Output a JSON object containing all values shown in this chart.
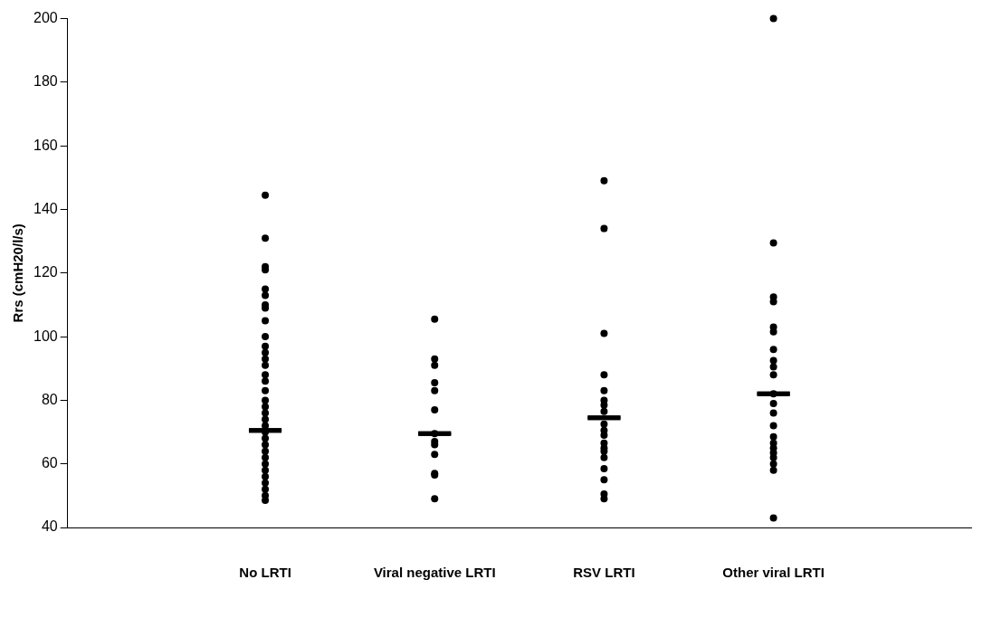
{
  "chart_data": {
    "type": "scatter",
    "ylabel": "Rrs (cmH20/l/s)",
    "categories": [
      "No LRTI",
      "Viral negative LRTI",
      "RSV LRTI",
      "Other viral LRTI"
    ],
    "ylim": [
      40,
      200
    ],
    "yticks": [
      40,
      60,
      80,
      100,
      120,
      140,
      160,
      180,
      200
    ],
    "grid": false,
    "legend": false,
    "marker": "circle",
    "series": [
      {
        "color": "#000000",
        "x": [
          "No LRTI",
          "No LRTI",
          "No LRTI",
          "No LRTI",
          "No LRTI",
          "No LRTI",
          "No LRTI",
          "No LRTI",
          "No LRTI",
          "No LRTI",
          "No LRTI",
          "No LRTI",
          "No LRTI",
          "No LRTI",
          "No LRTI",
          "No LRTI",
          "No LRTI",
          "No LRTI",
          "No LRTI",
          "No LRTI",
          "No LRTI",
          "No LRTI",
          "No LRTI",
          "No LRTI",
          "No LRTI",
          "No LRTI",
          "No LRTI",
          "No LRTI",
          "No LRTI",
          "No LRTI",
          "No LRTI",
          "No LRTI",
          "No LRTI",
          "No LRTI",
          "Viral negative LRTI",
          "Viral negative LRTI",
          "Viral negative LRTI",
          "Viral negative LRTI",
          "Viral negative LRTI",
          "Viral negative LRTI",
          "Viral negative LRTI",
          "Viral negative LRTI",
          "Viral negative LRTI",
          "Viral negative LRTI",
          "Viral negative LRTI",
          "Viral negative LRTI",
          "Viral negative LRTI",
          "RSV LRTI",
          "RSV LRTI",
          "RSV LRTI",
          "RSV LRTI",
          "RSV LRTI",
          "RSV LRTI",
          "RSV LRTI",
          "RSV LRTI",
          "RSV LRTI",
          "RSV LRTI",
          "RSV LRTI",
          "RSV LRTI",
          "RSV LRTI",
          "RSV LRTI",
          "RSV LRTI",
          "RSV LRTI",
          "RSV LRTI",
          "RSV LRTI",
          "RSV LRTI",
          "Other viral LRTI",
          "Other viral LRTI",
          "Other viral LRTI",
          "Other viral LRTI",
          "Other viral LRTI",
          "Other viral LRTI",
          "Other viral LRTI",
          "Other viral LRTI",
          "Other viral LRTI",
          "Other viral LRTI",
          "Other viral LRTI",
          "Other viral LRTI",
          "Other viral LRTI",
          "Other viral LRTI",
          "Other viral LRTI",
          "Other viral LRTI",
          "Other viral LRTI",
          "Other viral LRTI",
          "Other viral LRTI",
          "Other viral LRTI",
          "Other viral LRTI",
          "Other viral LRTI"
        ],
        "values": [
          144.5,
          131,
          122,
          121,
          115,
          113,
          110,
          109,
          105,
          100,
          97,
          95,
          93,
          91,
          88,
          86,
          83,
          80,
          78,
          76,
          74,
          72,
          70,
          68,
          66,
          64,
          62,
          60,
          58,
          56,
          54,
          52,
          50,
          48.5,
          105.5,
          93,
          91,
          85.5,
          83,
          77,
          69.5,
          67,
          66,
          63,
          57,
          56.5,
          49,
          149,
          134,
          101,
          88,
          83,
          80,
          78.5,
          76.5,
          72.5,
          70.5,
          69,
          66.5,
          65,
          64,
          62,
          58.5,
          55,
          50.5,
          49,
          200,
          129.5,
          112.5,
          111,
          103,
          101.5,
          96,
          92.5,
          90.5,
          88,
          82,
          79,
          76,
          72,
          68.5,
          66.5,
          65,
          63.5,
          62,
          60,
          58,
          43
        ]
      },
      {
        "type": "box",
        "color": "#000000",
        "boxes": [
          {
            "low": 70.5,
            "q1": 70.5,
            "median": 70.5,
            "q3": 70.5,
            "high": 70.5
          },
          {
            "low": 69.5,
            "q1": 69.5,
            "median": 69.5,
            "q3": 69.5,
            "high": 69.5
          },
          {
            "low": 74.5,
            "q1": 74.5,
            "median": 74.5,
            "q3": 74.5,
            "high": 74.5
          },
          {
            "low": 82,
            "q1": 82,
            "median": 82,
            "q3": 82,
            "high": 82
          }
        ]
      }
    ]
  }
}
